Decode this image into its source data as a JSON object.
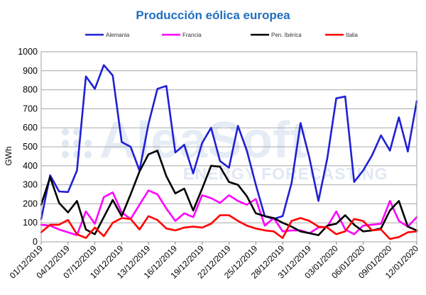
{
  "watermark": {
    "brand": "AleaSoft",
    "tagline": "ENERGY FORECASTING"
  },
  "chart_data": {
    "type": "line",
    "title": "Producción eólica europea",
    "xlabel": "",
    "ylabel": "GWh",
    "ylim": [
      0,
      1000
    ],
    "yticks": [
      0,
      100,
      200,
      300,
      400,
      500,
      600,
      700,
      800,
      900,
      1000
    ],
    "grid": true,
    "legend_position": "top",
    "x": [
      "01/12/2019",
      "02/12/2019",
      "03/12/2019",
      "04/12/2019",
      "05/12/2019",
      "06/12/2019",
      "07/12/2019",
      "08/12/2019",
      "09/12/2019",
      "10/12/2019",
      "11/12/2019",
      "12/12/2019",
      "13/12/2019",
      "14/12/2019",
      "15/12/2019",
      "16/12/2019",
      "17/12/2019",
      "18/12/2019",
      "19/12/2019",
      "20/12/2019",
      "21/12/2019",
      "22/12/2019",
      "23/12/2019",
      "24/12/2019",
      "25/12/2019",
      "26/12/2019",
      "27/12/2019",
      "28/12/2019",
      "29/12/2019",
      "30/12/2019",
      "31/12/2019",
      "01/01/2020",
      "02/01/2020",
      "03/01/2020",
      "04/01/2020",
      "05/01/2020",
      "06/01/2020",
      "07/01/2020",
      "08/01/2020",
      "09/01/2020",
      "10/01/2020",
      "11/01/2020",
      "12/01/2020"
    ],
    "xtick_labels": [
      "01/12/2019",
      "04/12/2019",
      "07/12/2019",
      "10/12/2019",
      "13/12/2019",
      "16/12/2019",
      "19/12/2019",
      "22/12/2019",
      "25/12/2019",
      "28/12/2019",
      "31/12/2019",
      "03/01/2020",
      "06/01/2020",
      "09/01/2020",
      "12/01/2020"
    ],
    "series": [
      {
        "name": "Alemania",
        "color": "#1f1fd6",
        "values": [
          120,
          350,
          265,
          262,
          375,
          870,
          805,
          930,
          875,
          525,
          500,
          375,
          620,
          805,
          820,
          470,
          510,
          360,
          520,
          600,
          425,
          390,
          610,
          480,
          300,
          135,
          120,
          135,
          310,
          625,
          440,
          215,
          440,
          755,
          765,
          315,
          375,
          455,
          560,
          480,
          655,
          475,
          740
        ]
      },
      {
        "name": "Francia",
        "color": "#ff00ff",
        "values": [
          90,
          85,
          65,
          50,
          35,
          160,
          95,
          235,
          260,
          155,
          120,
          195,
          270,
          250,
          175,
          110,
          150,
          130,
          245,
          230,
          205,
          245,
          215,
          195,
          225,
          85,
          125,
          55,
          60,
          60,
          45,
          75,
          80,
          160,
          65,
          40,
          85,
          90,
          95,
          215,
          110,
          80,
          130
        ]
      },
      {
        "name": "Pen. Ibérica",
        "color": "#000000",
        "values": [
          195,
          340,
          205,
          155,
          215,
          65,
          40,
          130,
          220,
          135,
          250,
          370,
          460,
          480,
          345,
          255,
          280,
          165,
          280,
          400,
          395,
          315,
          300,
          240,
          150,
          135,
          125,
          100,
          80,
          55,
          45,
          35,
          85,
          95,
          140,
          90,
          55,
          60,
          70,
          165,
          215,
          80,
          60
        ]
      },
      {
        "name": "Italia",
        "color": "#ff0000",
        "values": [
          50,
          90,
          90,
          115,
          40,
          20,
          75,
          30,
          100,
          125,
          120,
          65,
          135,
          115,
          70,
          60,
          75,
          80,
          75,
          95,
          140,
          140,
          110,
          85,
          70,
          60,
          55,
          20,
          110,
          125,
          110,
          80,
          75,
          40,
          55,
          120,
          110,
          60,
          65,
          15,
          25,
          50,
          55
        ]
      }
    ]
  }
}
